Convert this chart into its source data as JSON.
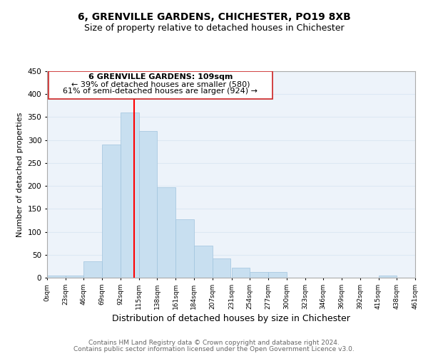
{
  "title": "6, GRENVILLE GARDENS, CHICHESTER, PO19 8XB",
  "subtitle": "Size of property relative to detached houses in Chichester",
  "xlabel": "Distribution of detached houses by size in Chichester",
  "ylabel": "Number of detached properties",
  "bar_color": "#c8dff0",
  "bar_edge_color": "#a0c4de",
  "vline_x": 109,
  "vline_color": "red",
  "annotation_title": "6 GRENVILLE GARDENS: 109sqm",
  "annotation_line1": "← 39% of detached houses are smaller (580)",
  "annotation_line2": "61% of semi-detached houses are larger (924) →",
  "bin_edges": [
    0,
    23,
    46,
    69,
    92,
    115,
    138,
    161,
    184,
    207,
    231,
    254,
    277,
    300,
    323,
    346,
    369,
    392,
    415,
    438,
    461
  ],
  "bar_heights": [
    5,
    5,
    35,
    290,
    360,
    320,
    197,
    127,
    70,
    42,
    22,
    13,
    13,
    0,
    0,
    0,
    0,
    0,
    5,
    0
  ],
  "xlim": [
    0,
    461
  ],
  "ylim": [
    0,
    450
  ],
  "yticks": [
    0,
    50,
    100,
    150,
    200,
    250,
    300,
    350,
    400,
    450
  ],
  "xtick_labels": [
    "0sqm",
    "23sqm",
    "46sqm",
    "69sqm",
    "92sqm",
    "115sqm",
    "138sqm",
    "161sqm",
    "184sqm",
    "207sqm",
    "231sqm",
    "254sqm",
    "277sqm",
    "300sqm",
    "323sqm",
    "346sqm",
    "369sqm",
    "392sqm",
    "415sqm",
    "438sqm",
    "461sqm"
  ],
  "grid_color": "#dce8f4",
  "background_color": "#edf3fa",
  "footer_line1": "Contains HM Land Registry data © Crown copyright and database right 2024.",
  "footer_line2": "Contains public sector information licensed under the Open Government Licence v3.0.",
  "title_fontsize": 10,
  "subtitle_fontsize": 9,
  "xlabel_fontsize": 9,
  "ylabel_fontsize": 8,
  "annotation_fontsize": 8,
  "footer_fontsize": 6.5
}
